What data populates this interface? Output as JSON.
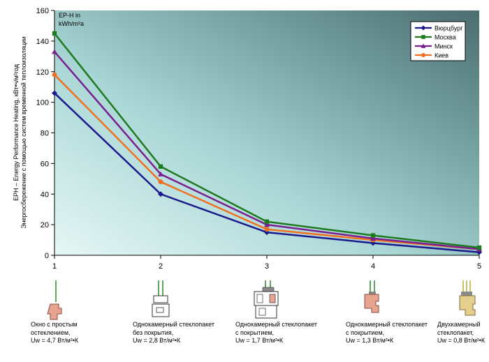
{
  "chart_data": {
    "type": "line",
    "title": "",
    "x": [
      1,
      2,
      3,
      4,
      5
    ],
    "xlim": [
      1,
      5
    ],
    "ylim": [
      0,
      160
    ],
    "yticks": [
      0,
      20,
      40,
      60,
      80,
      100,
      120,
      140,
      160
    ],
    "grid": false,
    "legend_position": "top-right",
    "unit_label_line1": "EP-H in",
    "unit_label_line2": "kWh/m²a",
    "ylabel_line1": "EPH – Energy Performance Heating, кВт•ч/м²год",
    "ylabel_line2": "Энергосбережение с помощью систем временной теплоизоляции",
    "series": [
      {
        "name": "Вюрцбург",
        "color": "#1a1a8c",
        "marker": "diamond",
        "values": [
          106,
          40,
          15,
          8,
          2
        ]
      },
      {
        "name": "Москва",
        "color": "#1e7a1e",
        "marker": "square",
        "values": [
          145,
          58,
          22,
          13,
          5
        ]
      },
      {
        "name": "Минск",
        "color": "#7a1f8f",
        "marker": "triangle",
        "values": [
          133,
          53,
          20,
          11,
          4
        ]
      },
      {
        "name": "Киев",
        "color": "#f07020",
        "marker": "circle",
        "values": [
          118,
          48,
          17,
          10,
          4
        ]
      }
    ]
  },
  "captions": [
    {
      "lines": [
        "Окно с простым",
        "остеклением,",
        "Uw = 4,7 Вт/м²•К"
      ]
    },
    {
      "lines": [
        "Однокамерный стеклопакет",
        "без покрытия,",
        "Uw = 2,8 Вт/м²•К"
      ]
    },
    {
      "lines": [
        "Однокамерный стеклопакет",
        "с покрытием,",
        "Uw = 1,7 Вт/м²•К"
      ]
    },
    {
      "lines": [
        "Однокамерный стеклопакет",
        "с покрытием,",
        "Uw = 1,3 Вт/м²•К"
      ]
    },
    {
      "lines": [
        "Двухкамерный",
        "стеклопакет,",
        "Uw = 0,8 Вт/м²•К"
      ]
    }
  ]
}
